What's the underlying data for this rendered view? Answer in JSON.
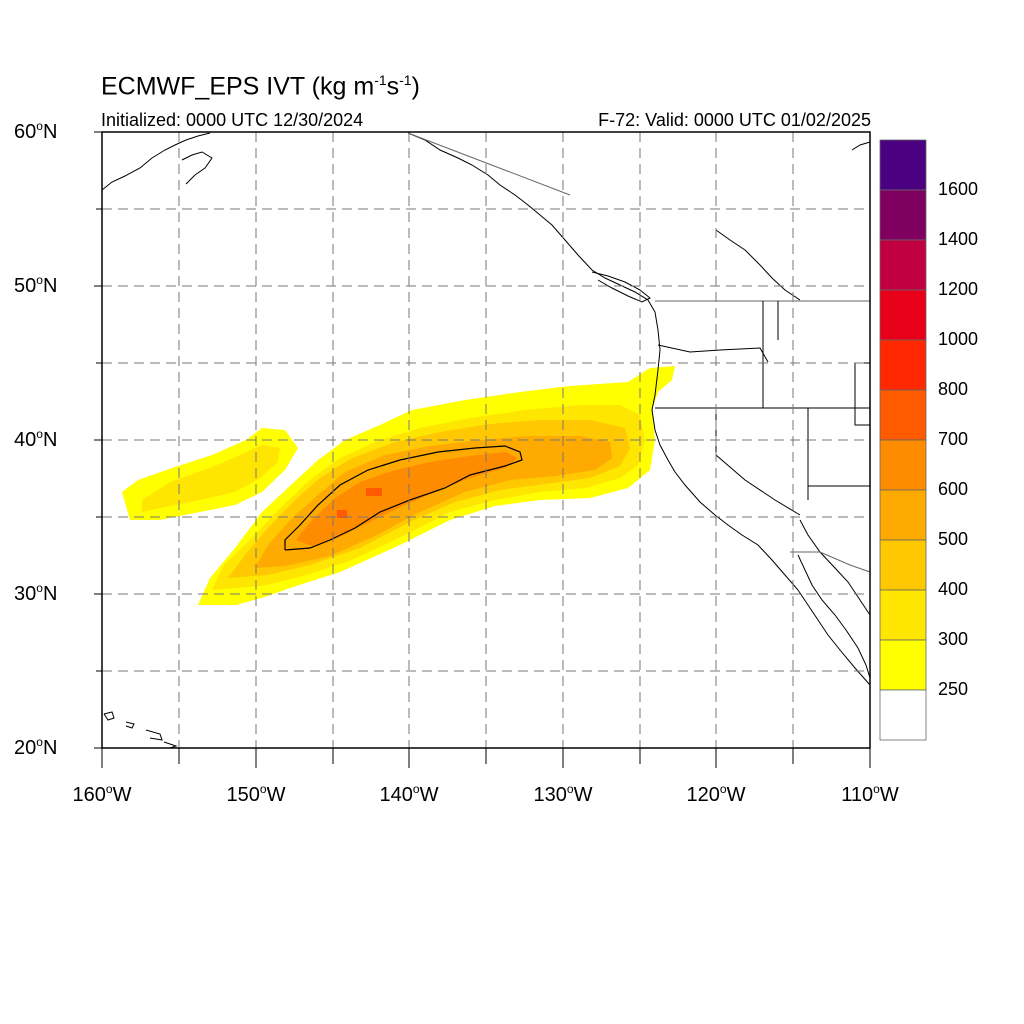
{
  "title": {
    "main": "ECMWF_EPS IVT (kg m",
    "exp1": "-1",
    "mid": "s",
    "exp2": "-1",
    "end": ")"
  },
  "initialized": "Initialized: 0000 UTC 12/30/2024",
  "valid": "F-72: Valid: 0000 UTC 01/02/2025",
  "map": {
    "lat_ticks": [
      {
        "value": "60",
        "suffix": "N"
      },
      {
        "value": "50",
        "suffix": "N"
      },
      {
        "value": "40",
        "suffix": "N"
      },
      {
        "value": "30",
        "suffix": "N"
      },
      {
        "value": "20",
        "suffix": "N"
      }
    ],
    "lon_ticks": [
      {
        "value": "160",
        "suffix": "W"
      },
      {
        "value": "150",
        "suffix": "W"
      },
      {
        "value": "140",
        "suffix": "W"
      },
      {
        "value": "130",
        "suffix": "W"
      },
      {
        "value": "120",
        "suffix": "W"
      },
      {
        "value": "110",
        "suffix": "W"
      }
    ],
    "extent": {
      "lon": [
        -160,
        -110
      ],
      "lat": [
        20,
        60
      ]
    },
    "gridline_spacing_deg": 5
  },
  "colorbar": {
    "labels": [
      "1600",
      "1400",
      "1200",
      "1000",
      "800",
      "700",
      "600",
      "500",
      "400",
      "300",
      "250"
    ],
    "colors": [
      "#4b0082",
      "#800060",
      "#c00040",
      "#e8001a",
      "#ff2800",
      "#ff5a00",
      "#ff8c00",
      "#ffaa00",
      "#ffc800",
      "#ffe600",
      "#ffff00",
      "#ffffff"
    ]
  },
  "colors": {
    "ivt_250": "#ffff00",
    "ivt_300": "#ffe600",
    "ivt_400": "#ffc800",
    "ivt_500": "#ffaa00",
    "ivt_600": "#ff8c00",
    "coast": "#000000",
    "grid": "#888888"
  }
}
